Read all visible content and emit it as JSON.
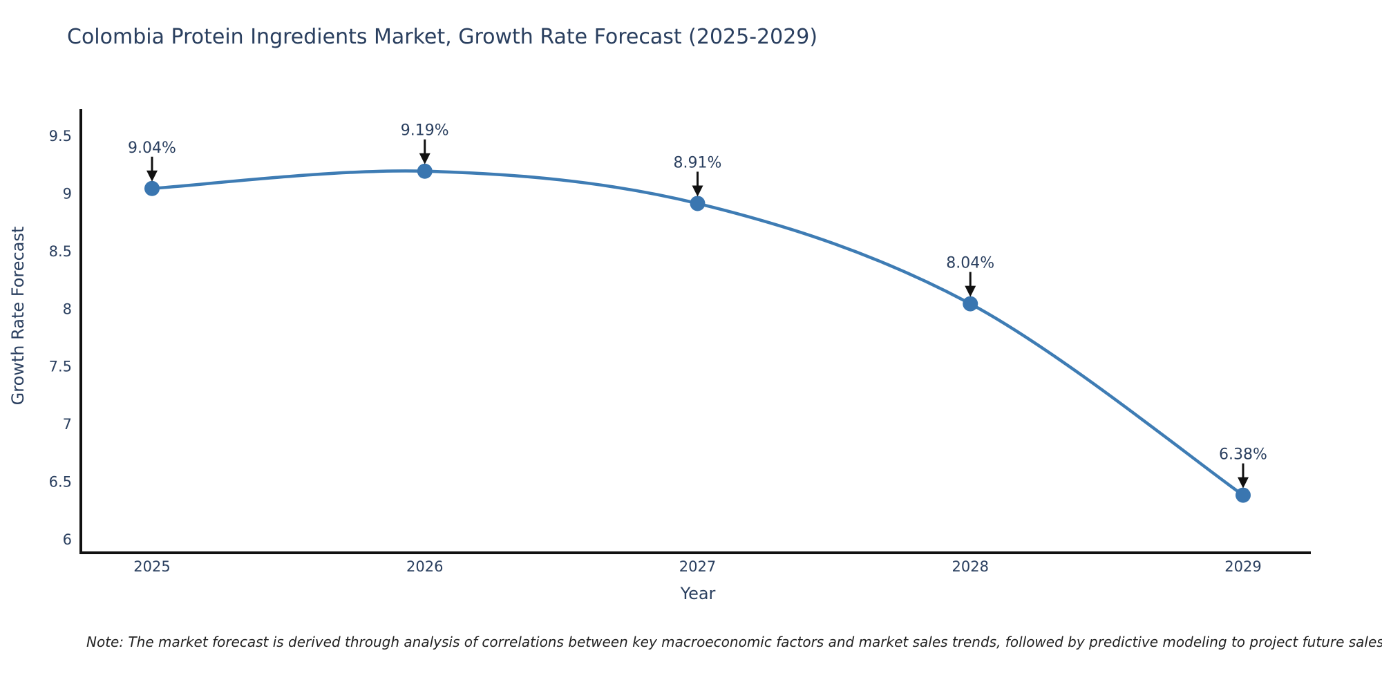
{
  "title": "Colombia Protein Ingredients Market, Growth Rate Forecast (2025-2029)",
  "note": "Note: The market forecast is derived through analysis of correlations between key macroeconomic factors and market sales trends, followed by predictive modeling to project future sales",
  "chart_data": {
    "type": "line",
    "title": "Colombia Protein Ingredients Market, Growth Rate Forecast (2025-2029)",
    "xlabel": "Year",
    "ylabel": "Growth Rate Forecast",
    "x": [
      2025,
      2026,
      2027,
      2028,
      2029
    ],
    "series": [
      {
        "name": "Growth Rate Forecast",
        "values": [
          9.04,
          9.19,
          8.91,
          8.04,
          6.38
        ],
        "point_labels": [
          "9.04%",
          "9.19%",
          "8.91%",
          "8.04%",
          "6.38%"
        ]
      }
    ],
    "yticks": [
      6,
      6.5,
      7,
      7.5,
      8,
      8.5,
      9,
      9.5
    ],
    "ylim": [
      5.87,
      9.73
    ],
    "grid": false,
    "legend": "none",
    "line_shape": "spline",
    "annotation_style": "value label with downward arrow to marker",
    "colors": {
      "line": "#3e7cb4",
      "marker": "#3a76b0",
      "text": "#2a3f5f",
      "axis": "#111111",
      "arrow": "#111111",
      "note": "#222222",
      "background": "#ffffff"
    }
  }
}
